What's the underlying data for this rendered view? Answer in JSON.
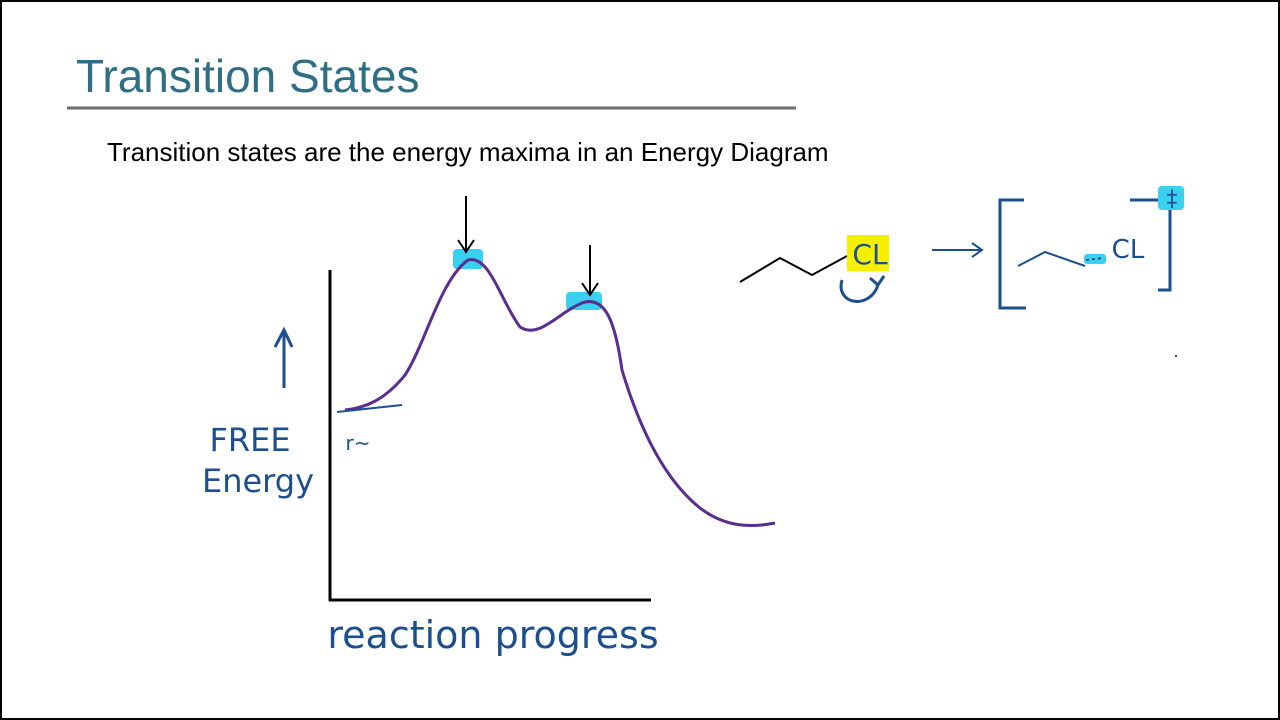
{
  "header": {
    "title": "Transition States"
  },
  "body": {
    "text": "Transition states are the energy maxima in an Energy Diagram"
  },
  "diagram": {
    "y_axis_label": [
      "FREE",
      "Energy"
    ],
    "x_axis_label": "reaction progress",
    "reactant_note": "r~",
    "reactant_atom": "CL",
    "ts_atom": "CL",
    "ts_symbol": "‡"
  }
}
